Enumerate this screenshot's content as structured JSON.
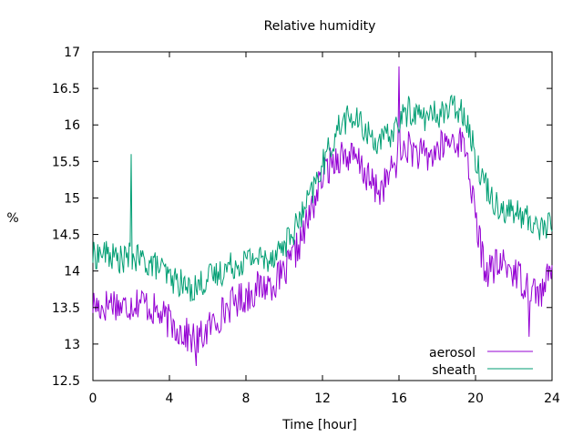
{
  "chart_data": {
    "type": "line",
    "title": "Relative humidity",
    "xlabel": "Time [hour]",
    "ylabel": "%",
    "xlim": [
      0,
      24
    ],
    "ylim": [
      12.5,
      17
    ],
    "xticks": [
      0,
      4,
      8,
      12,
      16,
      20,
      24
    ],
    "xtick_labels": [
      "0",
      "4",
      "8",
      "12",
      "16",
      "20",
      "24"
    ],
    "yticks": [
      12.5,
      13,
      13.5,
      14,
      14.5,
      15,
      15.5,
      16,
      16.5,
      17
    ],
    "ytick_labels": [
      "12.5",
      "13",
      "13.5",
      "14",
      "14.5",
      "15",
      "15.5",
      "16",
      "16.5",
      "17"
    ],
    "grid": false,
    "legend_position": "bottom-right",
    "x": [
      0,
      0.5,
      1,
      1.5,
      2,
      2.5,
      3,
      3.5,
      4,
      4.5,
      5,
      5.5,
      6,
      6.5,
      7,
      7.5,
      8,
      8.5,
      9,
      9.5,
      10,
      10.5,
      11,
      11.5,
      12,
      12.5,
      13,
      13.5,
      14,
      14.5,
      15,
      15.5,
      16,
      16.5,
      17,
      17.5,
      18,
      18.5,
      19,
      19.5,
      20,
      20.5,
      21,
      21.5,
      22,
      22.5,
      23,
      23.5,
      24
    ],
    "series": [
      {
        "name": "aerosol",
        "color": "#9400d3",
        "values": [
          13.55,
          13.5,
          13.6,
          13.5,
          13.55,
          13.6,
          13.5,
          13.4,
          13.3,
          13.2,
          13.1,
          13.05,
          13.2,
          13.35,
          13.5,
          13.6,
          13.65,
          13.75,
          13.8,
          13.85,
          13.95,
          14.2,
          14.5,
          14.9,
          15.3,
          15.5,
          15.6,
          15.55,
          15.45,
          15.2,
          15.1,
          15.3,
          15.6,
          15.7,
          15.6,
          15.55,
          15.65,
          15.75,
          15.8,
          15.7,
          14.7,
          14.0,
          14.05,
          14.1,
          14.0,
          13.85,
          13.75,
          13.7,
          14.05
        ]
      },
      {
        "name": "sheath",
        "color": "#009e73",
        "values": [
          14.2,
          14.25,
          14.2,
          14.15,
          14.2,
          14.15,
          14.1,
          14.05,
          13.9,
          13.85,
          13.75,
          13.8,
          13.9,
          13.95,
          14.05,
          14.1,
          14.15,
          14.2,
          14.15,
          14.25,
          14.35,
          14.55,
          14.8,
          15.1,
          15.45,
          15.75,
          16.05,
          16.1,
          16.0,
          15.85,
          15.75,
          15.85,
          16.05,
          16.2,
          16.15,
          16.1,
          16.15,
          16.2,
          16.25,
          16.15,
          15.55,
          15.2,
          14.95,
          14.85,
          14.8,
          14.75,
          14.65,
          14.6,
          14.65
        ]
      }
    ],
    "annotations": [
      {
        "series": "sheath",
        "x": 2.0,
        "y": 15.6
      },
      {
        "series": "aerosol",
        "x": 16.0,
        "y": 16.8
      },
      {
        "series": "aerosol",
        "x": 5.4,
        "y": 12.7
      },
      {
        "series": "aerosol",
        "x": 22.8,
        "y": 13.1
      }
    ]
  }
}
